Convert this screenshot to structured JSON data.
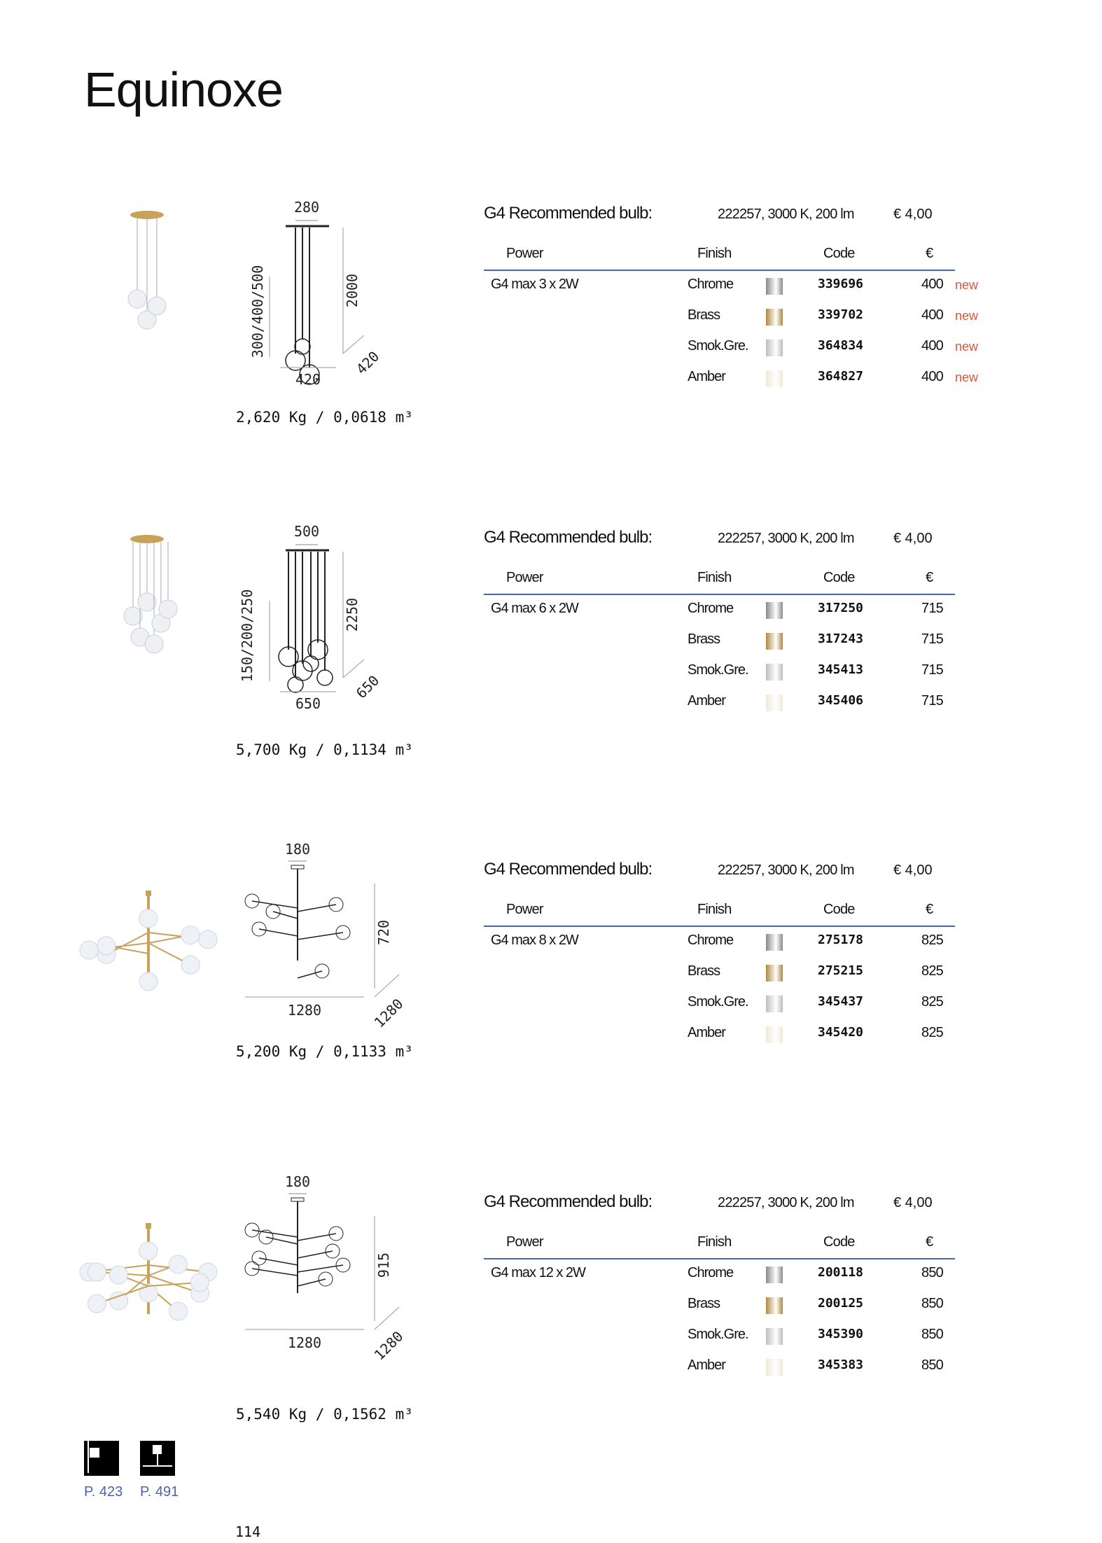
{
  "title": "Equinoxe",
  "headers": {
    "power": "Power",
    "finish": "Finish",
    "code": "Code",
    "price": "€"
  },
  "bulb": {
    "label": "G4  Recommended bulb:",
    "value": "222257, 3000 K, 200 lm",
    "price": "€  4,00"
  },
  "swatch_colors": {
    "Chrome": "#8a8a8a",
    "Brass": "#b08840",
    "Smok.Gre.": "#bdbdbd",
    "Amber": "#efe9d6"
  },
  "products": [
    {
      "power": "G4 max 3 x 2W",
      "dims": {
        "top": "280",
        "left": "300/400/500",
        "right": "2000",
        "bottom": "420",
        "diag": "420"
      },
      "weight": "2,620 Kg / 0,0618 m³",
      "rows": [
        {
          "finish": "Chrome",
          "code": "339696",
          "price": "400",
          "badge": "new"
        },
        {
          "finish": "Brass",
          "code": "339702",
          "price": "400",
          "badge": "new"
        },
        {
          "finish": "Smok.Gre.",
          "code": "364834",
          "price": "400",
          "badge": "new"
        },
        {
          "finish": "Amber",
          "code": "364827",
          "price": "400",
          "badge": "new"
        }
      ]
    },
    {
      "power": "G4 max 6 x 2W",
      "dims": {
        "top": "500",
        "left": "150/200/250",
        "right": "2250",
        "bottom": "650",
        "diag": "650"
      },
      "weight": "5,700 Kg / 0,1134 m³",
      "rows": [
        {
          "finish": "Chrome",
          "code": "317250",
          "price": "715"
        },
        {
          "finish": "Brass",
          "code": "317243",
          "price": "715"
        },
        {
          "finish": "Smok.Gre.",
          "code": "345413",
          "price": "715"
        },
        {
          "finish": "Amber",
          "code": "345406",
          "price": "715"
        }
      ]
    },
    {
      "power": "G4 max 8 x 2W",
      "dims": {
        "top": "180",
        "right": "720",
        "bottom": "1280",
        "diag": "1280"
      },
      "weight": "5,200 Kg / 0,1133 m³",
      "rows": [
        {
          "finish": "Chrome",
          "code": "275178",
          "price": "825"
        },
        {
          "finish": "Brass",
          "code": "275215",
          "price": "825"
        },
        {
          "finish": "Smok.Gre.",
          "code": "345437",
          "price": "825"
        },
        {
          "finish": "Amber",
          "code": "345420",
          "price": "825"
        }
      ]
    },
    {
      "power": "G4 max 12 x 2W",
      "dims": {
        "top": "180",
        "right": "915",
        "bottom": "1280",
        "diag": "1280"
      },
      "weight": "5,540 Kg / 0,1562 m³",
      "rows": [
        {
          "finish": "Chrome",
          "code": "200118",
          "price": "850"
        },
        {
          "finish": "Brass",
          "code": "200125",
          "price": "850"
        },
        {
          "finish": "Smok.Gre.",
          "code": "345390",
          "price": "850"
        },
        {
          "finish": "Amber",
          "code": "345383",
          "price": "850"
        }
      ]
    }
  ],
  "refs": [
    {
      "icon": "wall-lamp-icon",
      "label": "P. 423"
    },
    {
      "icon": "floor-lamp-icon",
      "label": "P. 491"
    }
  ],
  "page_number": "114"
}
